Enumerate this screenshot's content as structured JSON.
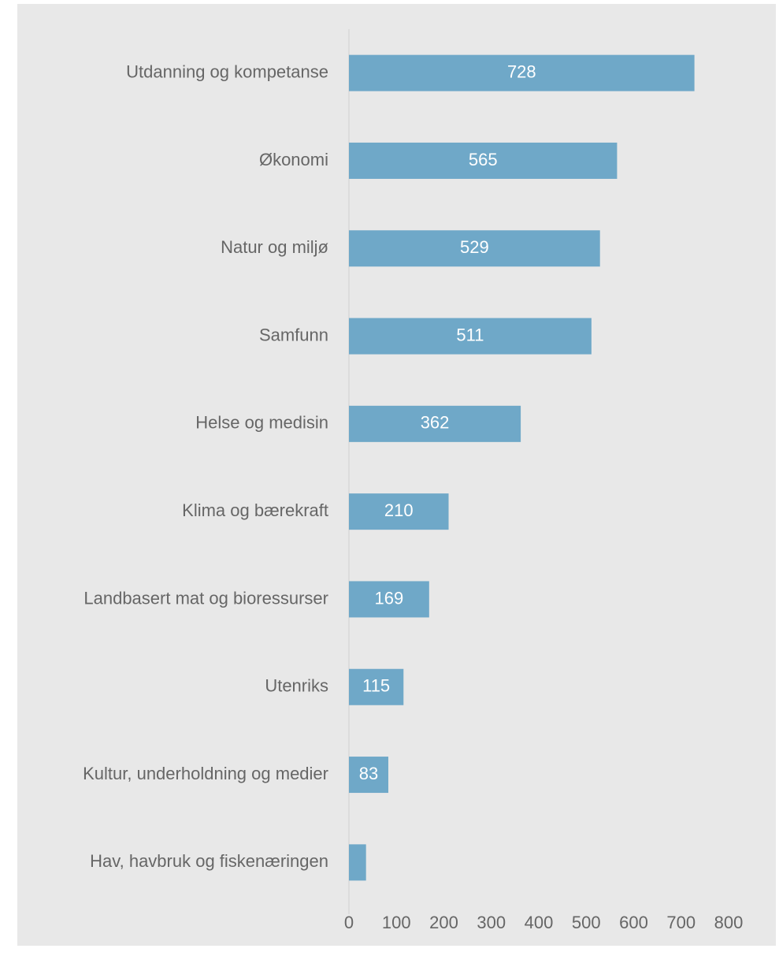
{
  "chart_data": {
    "type": "bar",
    "orientation": "horizontal",
    "categories": [
      "Utdanning og kompetanse",
      "Økonomi",
      "Natur og miljø",
      "Samfunn",
      "Helse og medisin",
      "Klima og bærekraft",
      "Landbasert mat og bioressurser",
      "Utenriks",
      "Kultur, underholdning og medier",
      "Hav, havbruk og fiskenæringen"
    ],
    "values": [
      728,
      565,
      529,
      511,
      362,
      210,
      169,
      115,
      83,
      36
    ],
    "value_labels": [
      728,
      565,
      529,
      511,
      362,
      210,
      169,
      115,
      83,
      null
    ],
    "color": "#6fa8c8",
    "xlim": [
      0,
      800
    ],
    "xticks": [
      0,
      100,
      200,
      300,
      400,
      500,
      600,
      700,
      800
    ],
    "grid": false
  }
}
